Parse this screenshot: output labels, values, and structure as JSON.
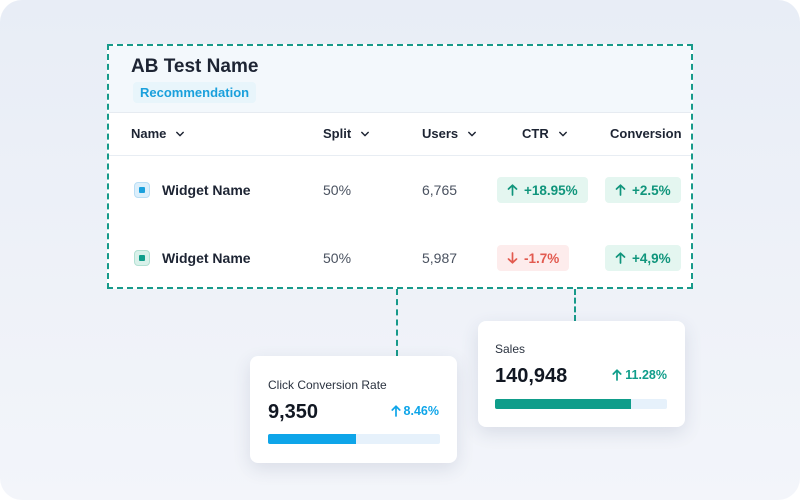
{
  "ab_test": {
    "title": "AB Test Name",
    "badge": "Recommendation",
    "columns": [
      "Name",
      "Split",
      "Users",
      "CTR",
      "Conversion"
    ],
    "rows": [
      {
        "name": "Widget Name",
        "split": "50%",
        "users": "6,765",
        "ctr": {
          "value": "+18.95%",
          "direction": "up"
        },
        "conversion": {
          "value": "+2.5%",
          "direction": "up"
        }
      },
      {
        "name": "Widget Name",
        "split": "50%",
        "users": "5,987",
        "ctr": {
          "value": "-1.7%",
          "direction": "down"
        },
        "conversion": {
          "value": "+4,9%",
          "direction": "up"
        }
      }
    ]
  },
  "metrics": [
    {
      "label": "Click Conversion Rate",
      "value": "9,350",
      "delta": "8.46%",
      "progress": 0.51,
      "accent": "#0ea5e9",
      "track": "#e6f1fb"
    },
    {
      "label": "Sales",
      "value": "140,948",
      "delta": "11.28%",
      "progress": 0.79,
      "accent": "#0f9d8a",
      "track": "#e6f1fb"
    }
  ],
  "icons": {
    "sort": "chevron-down-icon",
    "up": "arrow-up-icon",
    "down": "arrow-down-icon",
    "widget": "widget-icon"
  },
  "colors": {
    "dashed_border": "#179a8a",
    "positive": "#10957c",
    "negative": "#e25a4f"
  }
}
